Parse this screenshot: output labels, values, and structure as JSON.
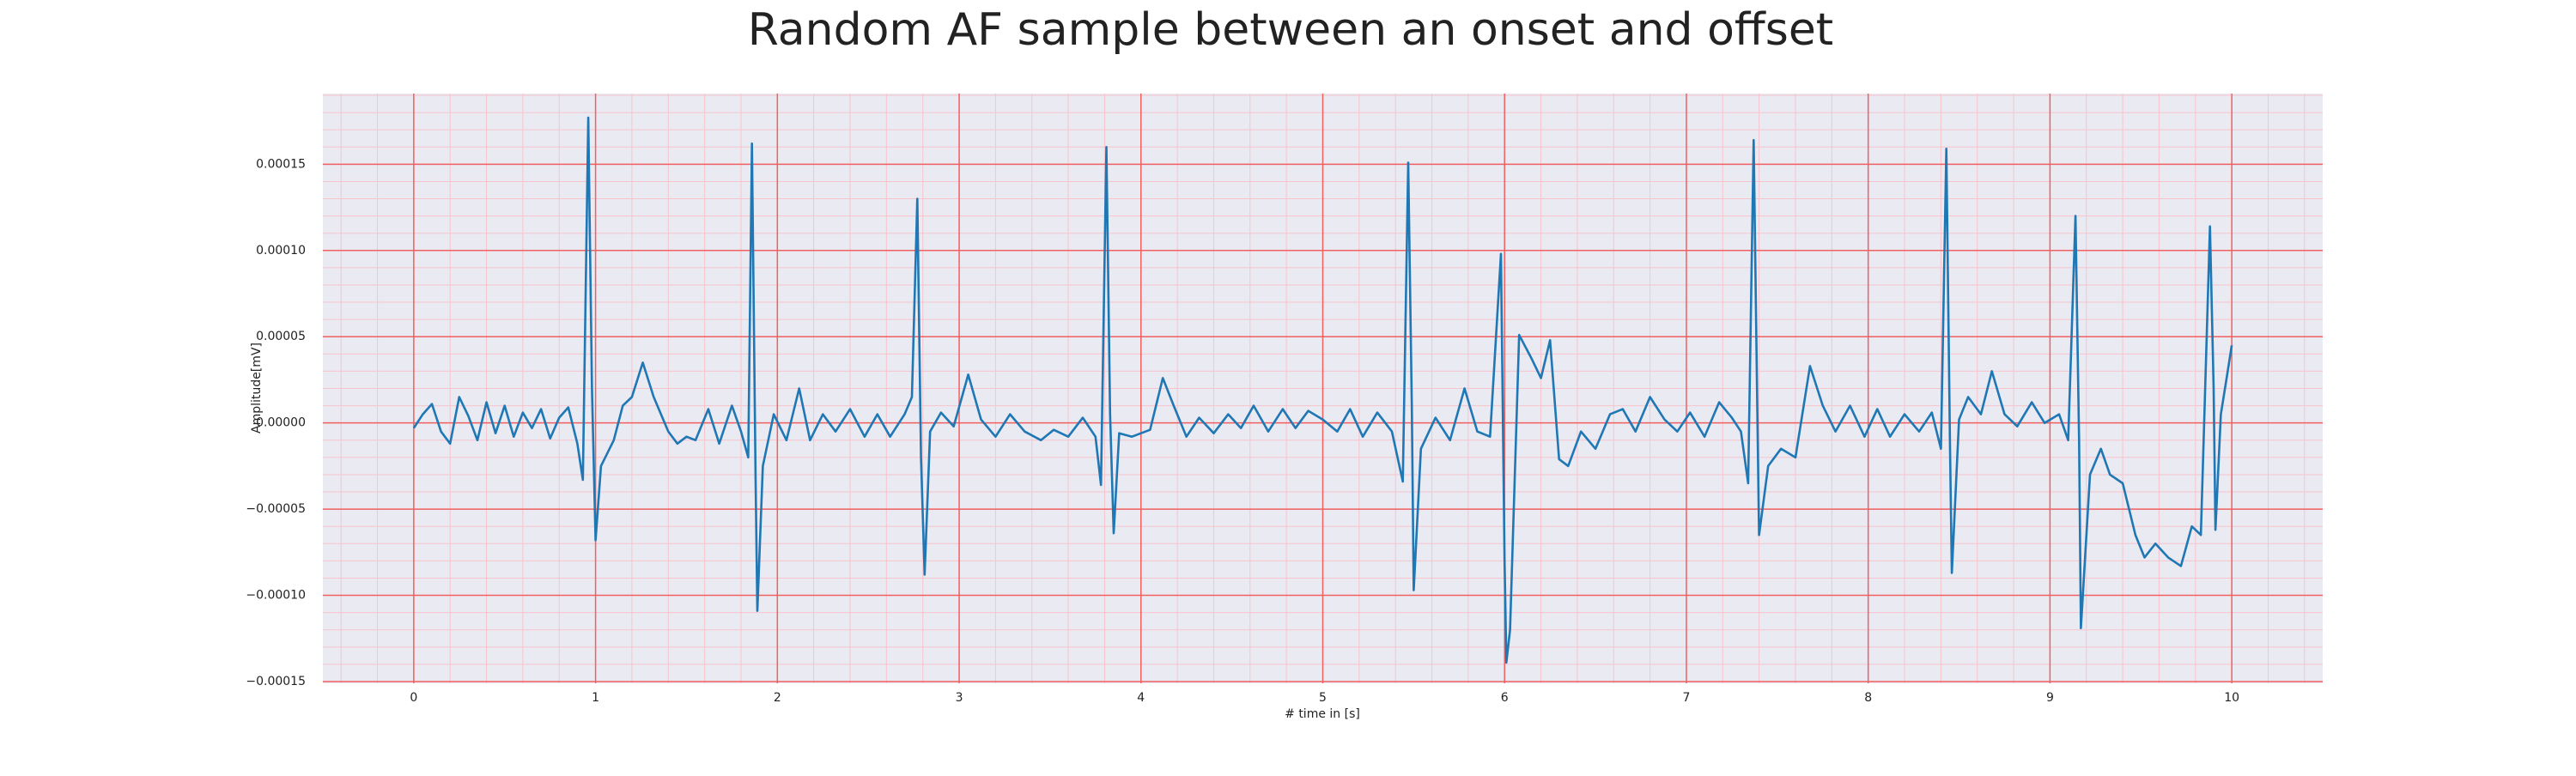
{
  "chart_data": {
    "type": "line",
    "title": "Random AF sample between an onset and offset",
    "xlabel": "# time in [s]",
    "ylabel": "Amplitude[mV]",
    "color": "#1f77b4",
    "background": "#eaeaf2",
    "grid": true,
    "grid_color": "#f06060",
    "minor_grid": {
      "x_step": 0.2,
      "y_step": 1e-05,
      "color": "#f7c4cc"
    },
    "xlim": [
      -0.5,
      10.5
    ],
    "ylim": [
      -0.000151,
      0.000191
    ],
    "xticks": [
      0,
      1,
      2,
      3,
      4,
      5,
      6,
      7,
      8,
      9,
      10
    ],
    "yticks": [
      {
        "value": -0.00015,
        "label": "−0.00015"
      },
      {
        "value": -0.0001,
        "label": "−0.00010"
      },
      {
        "value": -5e-05,
        "label": "−0.00005"
      },
      {
        "value": 0,
        "label": "0.00000"
      },
      {
        "value": 5e-05,
        "label": "0.00005"
      },
      {
        "value": 0.0001,
        "label": "0.00010"
      },
      {
        "value": 0.00015,
        "label": "0.00015"
      }
    ],
    "x": [
      0,
      0.05,
      0.1,
      0.15,
      0.2,
      0.25,
      0.3,
      0.35,
      0.4,
      0.45,
      0.5,
      0.55,
      0.6,
      0.65,
      0.7,
      0.75,
      0.8,
      0.85,
      0.9,
      0.93,
      0.96,
      0.98,
      1,
      1.03,
      1.1,
      1.15,
      1.2,
      1.26,
      1.32,
      1.4,
      1.45,
      1.5,
      1.55,
      1.62,
      1.68,
      1.75,
      1.8,
      1.84,
      1.86,
      1.88,
      1.89,
      1.92,
      1.98,
      2.05,
      2.12,
      2.18,
      2.25,
      2.32,
      2.4,
      2.48,
      2.55,
      2.62,
      2.7,
      2.74,
      2.77,
      2.79,
      2.81,
      2.84,
      2.9,
      2.97,
      3.05,
      3.12,
      3.2,
      3.28,
      3.36,
      3.45,
      3.52,
      3.6,
      3.68,
      3.75,
      3.78,
      3.81,
      3.83,
      3.85,
      3.88,
      3.95,
      4.05,
      4.12,
      4.18,
      4.25,
      4.32,
      4.4,
      4.48,
      4.55,
      4.62,
      4.7,
      4.78,
      4.85,
      4.92,
      5,
      5.08,
      5.15,
      5.22,
      5.3,
      5.38,
      5.44,
      5.47,
      5.49,
      5.5,
      5.54,
      5.62,
      5.7,
      5.78,
      5.85,
      5.92,
      5.98,
      6,
      6.01,
      6.03,
      6.08,
      6.15,
      6.2,
      6.25,
      6.3,
      6.35,
      6.42,
      6.5,
      6.58,
      6.65,
      6.72,
      6.8,
      6.88,
      6.95,
      7.02,
      7.1,
      7.18,
      7.25,
      7.3,
      7.34,
      7.37,
      7.39,
      7.4,
      7.45,
      7.52,
      7.6,
      7.68,
      7.75,
      7.82,
      7.9,
      7.98,
      8.05,
      8.12,
      8.2,
      8.28,
      8.35,
      8.4,
      8.43,
      8.45,
      8.46,
      8.5,
      8.55,
      8.62,
      8.68,
      8.75,
      8.82,
      8.9,
      8.97,
      9.05,
      9.1,
      9.14,
      9.16,
      9.17,
      9.22,
      9.28,
      9.33,
      9.4,
      9.47,
      9.52,
      9.58,
      9.65,
      9.72,
      9.78,
      9.83,
      9.88,
      9.9,
      9.91,
      9.94,
      9.97,
      10
    ],
    "values": [
      -3e-06,
      5e-06,
      1.1e-05,
      -5e-06,
      -1.2e-05,
      1.5e-05,
      4e-06,
      -1e-05,
      1.2e-05,
      -6e-06,
      1e-05,
      -8e-06,
      6e-06,
      -3e-06,
      8e-06,
      -9e-06,
      3e-06,
      9e-06,
      -1.2e-05,
      -3.3e-05,
      0.000177,
      2e-05,
      -6.8e-05,
      -2.5e-05,
      -1e-05,
      1e-05,
      1.5e-05,
      3.5e-05,
      1.5e-05,
      -5e-06,
      -1.2e-05,
      -8e-06,
      -1e-05,
      8e-06,
      -1.2e-05,
      1e-05,
      -5e-06,
      -2e-05,
      0.000162,
      -3e-05,
      -0.000109,
      -2.5e-05,
      5e-06,
      -1e-05,
      2e-05,
      -1e-05,
      5e-06,
      -5e-06,
      8e-06,
      -8e-06,
      5e-06,
      -8e-06,
      5e-06,
      1.5e-05,
      0.00013,
      -2e-05,
      -8.8e-05,
      -5e-06,
      6e-06,
      -2e-06,
      2.8e-05,
      2e-06,
      -8e-06,
      5e-06,
      -5e-06,
      -1e-05,
      -4e-06,
      -8e-06,
      3e-06,
      -8e-06,
      -3.6e-05,
      0.00016,
      5e-06,
      -6.4e-05,
      -6e-06,
      -8e-06,
      -4e-06,
      2.6e-05,
      1e-05,
      -8e-06,
      3e-06,
      -6e-06,
      5e-06,
      -3e-06,
      1e-05,
      -5e-06,
      8e-06,
      -3e-06,
      7e-06,
      2e-06,
      -5e-06,
      8e-06,
      -8e-06,
      6e-06,
      -5e-06,
      -3.4e-05,
      0.000151,
      1e-05,
      -9.7e-05,
      -1.5e-05,
      3e-06,
      -1e-05,
      2e-05,
      -5e-06,
      -8e-06,
      9.8e-05,
      -8e-05,
      -0.000139,
      -0.00012,
      5.1e-05,
      3.7e-05,
      2.6e-05,
      4.8e-05,
      -2.1e-05,
      -2.5e-05,
      -5e-06,
      -1.5e-05,
      5e-06,
      8e-06,
      -5e-06,
      1.5e-05,
      2e-06,
      -5e-06,
      6e-06,
      -8e-06,
      1.2e-05,
      3e-06,
      -5e-06,
      -3.5e-05,
      0.000164,
      1e-05,
      -6.5e-05,
      -2.5e-05,
      -1.5e-05,
      -2e-05,
      3.3e-05,
      1e-05,
      -5e-06,
      1e-05,
      -8e-06,
      8e-06,
      -8e-06,
      5e-06,
      -5e-06,
      6e-06,
      -1.5e-05,
      0.000159,
      -1.5e-05,
      -8.7e-05,
      2e-06,
      1.5e-05,
      5e-06,
      3e-05,
      5e-06,
      -2e-06,
      1.2e-05,
      0,
      5e-06,
      -1e-05,
      0.00012,
      -1e-05,
      -0.000119,
      -3e-05,
      -1.5e-05,
      -3e-05,
      -3.5e-05,
      -6.5e-05,
      -7.8e-05,
      -7e-05,
      -7.8e-05,
      -8.3e-05,
      -6e-05,
      -6.5e-05,
      0.000114,
      2e-05,
      -6.2e-05,
      5e-06,
      2.5e-05,
      4.5e-05
    ]
  }
}
